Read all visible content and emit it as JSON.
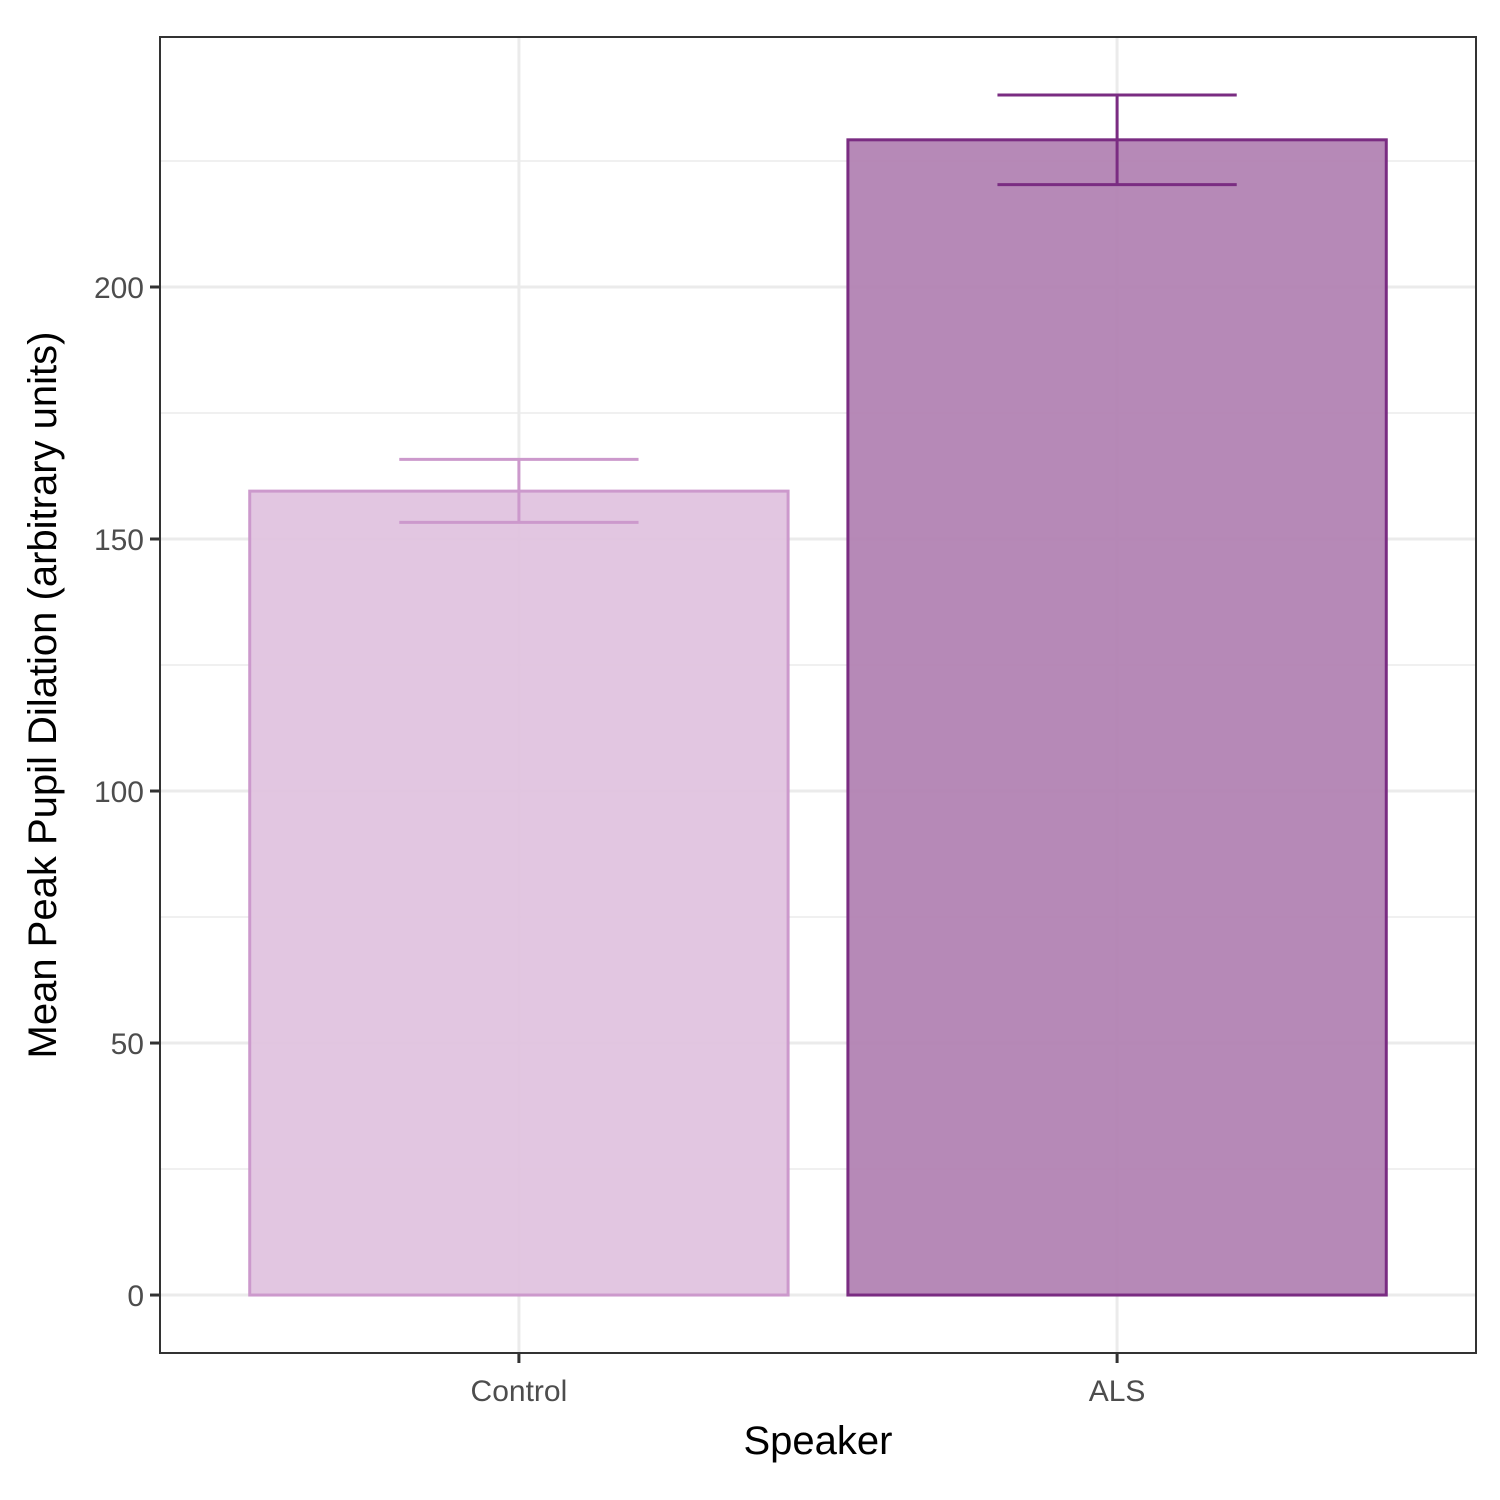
{
  "chart_data": {
    "type": "bar",
    "title": "",
    "xlabel": "Speaker",
    "ylabel": "Mean Peak Pupil Dilation (arbitrary units)",
    "categories": [
      "Control",
      "ALS"
    ],
    "values": [
      159.5,
      229.2
    ],
    "error_low": [
      153.3,
      220.3
    ],
    "error_high": [
      165.8,
      238.1
    ],
    "ylim": [
      -11.5,
      249.6
    ],
    "yticks": [
      0,
      50,
      100,
      150,
      200
    ],
    "ytick_labels": [
      "0",
      "50",
      "100",
      "150",
      "200"
    ],
    "grid": true,
    "legend": "none",
    "colors": {
      "fill": [
        "#dfc1de",
        "#b07fb1"
      ],
      "stroke": [
        "#cc99cc",
        "#7a2c82"
      ]
    }
  }
}
